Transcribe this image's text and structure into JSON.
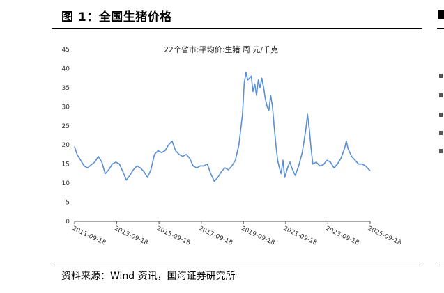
{
  "figure": {
    "title": "图 1：全国生猪价格",
    "source": "资料来源：Wind 资讯，国海证券研究所"
  },
  "chart_data": {
    "type": "line",
    "title": "22个省市:平均价:生猪  周  元/千克",
    "xlabel": "",
    "ylabel": "",
    "ylim": [
      0,
      45
    ],
    "yticks": [
      0,
      5,
      10,
      15,
      20,
      25,
      30,
      35,
      40,
      45
    ],
    "xlim": [
      "2011-09-18",
      "2025-09-18"
    ],
    "xticks": [
      "2011-09-18",
      "2013-09-18",
      "2015-09-18",
      "2017-09-18",
      "2019-09-18",
      "2021-09-18",
      "2023-09-18",
      "2025-09-18"
    ],
    "grid": false,
    "legend": "none",
    "series": [
      {
        "color": "#5b8fd1",
        "x": [
          "2011-09-18",
          "2011-11-01",
          "2012-01-01",
          "2012-03-01",
          "2012-05-01",
          "2012-07-01",
          "2012-09-01",
          "2012-11-01",
          "2013-01-01",
          "2013-03-01",
          "2013-05-01",
          "2013-07-01",
          "2013-09-01",
          "2013-11-01",
          "2014-01-01",
          "2014-03-01",
          "2014-05-01",
          "2014-07-01",
          "2014-09-01",
          "2014-11-01",
          "2015-01-01",
          "2015-03-01",
          "2015-05-01",
          "2015-07-01",
          "2015-09-01",
          "2015-11-01",
          "2016-01-01",
          "2016-03-01",
          "2016-05-01",
          "2016-07-01",
          "2016-09-01",
          "2016-11-01",
          "2017-01-01",
          "2017-03-01",
          "2017-05-01",
          "2017-07-01",
          "2017-09-01",
          "2017-11-01",
          "2018-01-01",
          "2018-03-01",
          "2018-05-01",
          "2018-07-01",
          "2018-09-01",
          "2018-11-01",
          "2019-01-01",
          "2019-03-01",
          "2019-05-01",
          "2019-07-01",
          "2019-09-01",
          "2019-10-01",
          "2019-11-01",
          "2019-12-01",
          "2020-01-01",
          "2020-02-01",
          "2020-03-01",
          "2020-04-01",
          "2020-05-01",
          "2020-06-01",
          "2020-07-01",
          "2020-08-01",
          "2020-09-01",
          "2020-10-01",
          "2020-11-01",
          "2020-12-01",
          "2021-01-01",
          "2021-02-01",
          "2021-03-01",
          "2021-04-01",
          "2021-05-01",
          "2021-06-01",
          "2021-07-01",
          "2021-08-01",
          "2021-09-01",
          "2021-10-01",
          "2021-11-01",
          "2021-12-01",
          "2022-01-01",
          "2022-03-01",
          "2022-05-01",
          "2022-07-01",
          "2022-08-01",
          "2022-09-01",
          "2022-10-01",
          "2022-11-01",
          "2022-12-01",
          "2023-01-01",
          "2023-03-01",
          "2023-05-01",
          "2023-07-01",
          "2023-09-01",
          "2023-11-01",
          "2024-01-01",
          "2024-03-01",
          "2024-05-01",
          "2024-07-01",
          "2024-08-01",
          "2024-09-01",
          "2024-11-01",
          "2025-01-01",
          "2025-03-01",
          "2025-05-01",
          "2025-07-01",
          "2025-09-01",
          "2025-09-18"
        ],
        "values": [
          19.5,
          17.5,
          16.0,
          14.5,
          14.0,
          14.8,
          15.5,
          17.0,
          15.5,
          12.5,
          13.5,
          15.0,
          15.5,
          15.0,
          13.0,
          10.8,
          12.0,
          13.5,
          14.5,
          14.0,
          13.0,
          11.5,
          13.5,
          17.5,
          18.5,
          18.0,
          18.5,
          20.0,
          21.0,
          18.5,
          17.5,
          17.0,
          17.5,
          16.5,
          14.5,
          14.0,
          14.5,
          14.5,
          15.0,
          12.5,
          10.5,
          11.5,
          13.0,
          14.0,
          13.5,
          14.5,
          16.0,
          20.0,
          28.0,
          36.0,
          39.0,
          37.0,
          37.5,
          38.0,
          34.0,
          36.0,
          33.0,
          37.0,
          35.0,
          37.5,
          35.0,
          32.0,
          30.0,
          29.0,
          33.0,
          30.0,
          25.0,
          20.0,
          16.0,
          14.0,
          12.5,
          16.0,
          11.5,
          13.0,
          14.5,
          15.5,
          14.0,
          12.0,
          14.5,
          18.0,
          21.0,
          24.0,
          28.0,
          24.0,
          19.0,
          15.0,
          15.5,
          14.5,
          14.8,
          16.0,
          15.5,
          14.0,
          15.0,
          16.5,
          19.0,
          21.0,
          19.0,
          17.0,
          16.0,
          15.0,
          15.0,
          14.5,
          13.5,
          13.3
        ]
      }
    ]
  }
}
